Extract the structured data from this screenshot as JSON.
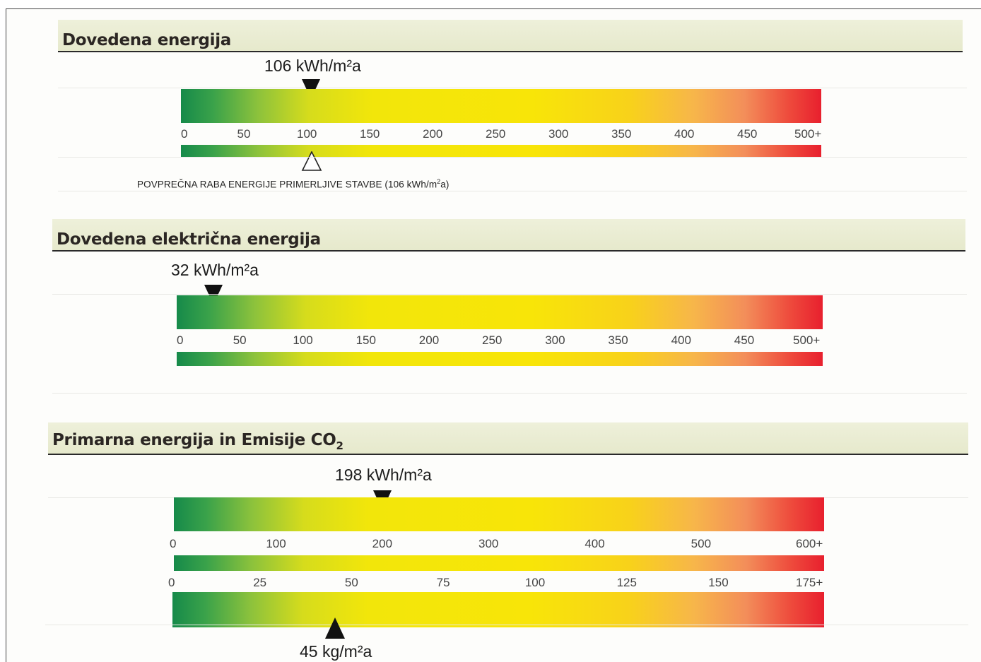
{
  "sections": [
    {
      "title": "Dovedena energija",
      "readout": "106 kWh/m²a",
      "value": 106,
      "scale_max": 500,
      "ticks": [
        "0",
        "50",
        "100",
        "150",
        "200",
        "250",
        "300",
        "350",
        "400",
        "450",
        "500+"
      ],
      "average_value": 106,
      "average_caption_main": "POVPREČNA RABA ENERGIJE PRIMERLJIVE STAVBE (106 kWh/m",
      "average_caption_sup": "2",
      "average_caption_end": "a)"
    },
    {
      "title": "Dovedena električna energija",
      "readout": "32 kWh/m²a",
      "value": 32,
      "scale_max": 500,
      "ticks": [
        "0",
        "50",
        "100",
        "150",
        "200",
        "250",
        "300",
        "350",
        "400",
        "450",
        "500+"
      ]
    },
    {
      "title_main": "Primarna energija in Emisije CO",
      "title_sub": "2",
      "readout": "198 kWh/m²a",
      "value": 198,
      "scale_max": 600,
      "ticks": [
        "0",
        "100",
        "200",
        "300",
        "400",
        "500",
        "600+"
      ],
      "co2_ticks": [
        "0",
        "25",
        "50",
        "75",
        "100",
        "125",
        "150",
        "175+"
      ],
      "co2_value": 45,
      "co2_scale_max": 175,
      "co2_readout": "45 kg/m²a"
    }
  ],
  "colors": {
    "scale_low": "#168a4a",
    "scale_mid": "#f8e508",
    "scale_high": "#e8202e",
    "band_bg": "#e8ebcf",
    "marker": "#111111"
  },
  "icons": {
    "marker_down": "triangle-down-icon",
    "marker_average": "triangle-outline-up-icon",
    "marker_up": "triangle-up-icon"
  }
}
